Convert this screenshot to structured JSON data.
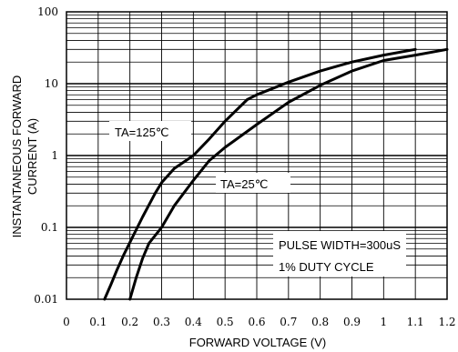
{
  "chart_data": {
    "type": "line",
    "title": "",
    "xlabel": "FORWARD VOLTAGE (V)",
    "ylabel_lines": [
      "INSTANTANEOUS FORWARD",
      "CURRENT (A)"
    ],
    "xlim": [
      0,
      1.2
    ],
    "ylim": [
      0.01,
      100
    ],
    "yscale": "log",
    "grid": true,
    "x_ticks": [
      "0",
      "0.1",
      "0.2",
      "0.3",
      "0.4",
      "0.5",
      "0.6",
      "0.7",
      "0.8",
      "0.9",
      "1",
      "1.1",
      "1.2"
    ],
    "y_ticks": [
      "0.01",
      "0.1",
      "1",
      "10",
      "100"
    ],
    "series": [
      {
        "name": "TA=125℃",
        "x": [
          0.12,
          0.14,
          0.16,
          0.18,
          0.2,
          0.24,
          0.28,
          0.3,
          0.34,
          0.4,
          0.45,
          0.5,
          0.57,
          0.6,
          0.7,
          0.8,
          0.9,
          1.0,
          1.1
        ],
        "y": [
          0.01,
          0.016,
          0.026,
          0.041,
          0.062,
          0.14,
          0.3,
          0.42,
          0.66,
          1.0,
          1.7,
          3.0,
          6.0,
          7.0,
          10.5,
          15.0,
          20.0,
          25.0,
          30.0
        ]
      },
      {
        "name": "TA=25℃",
        "x": [
          0.2,
          0.22,
          0.24,
          0.26,
          0.3,
          0.34,
          0.4,
          0.45,
          0.5,
          0.6,
          0.7,
          0.8,
          0.9,
          1.0,
          1.1,
          1.2
        ],
        "y": [
          0.01,
          0.02,
          0.037,
          0.06,
          0.1,
          0.2,
          0.45,
          0.85,
          1.3,
          2.7,
          5.5,
          9.5,
          15.0,
          21.0,
          25.0,
          30.0
        ]
      }
    ],
    "annotations": {
      "label_125": "TA=125℃",
      "label_25": "TA=25℃",
      "note_line1": "PULSE WIDTH=300uS",
      "note_line2": "1% DUTY CYCLE"
    }
  }
}
